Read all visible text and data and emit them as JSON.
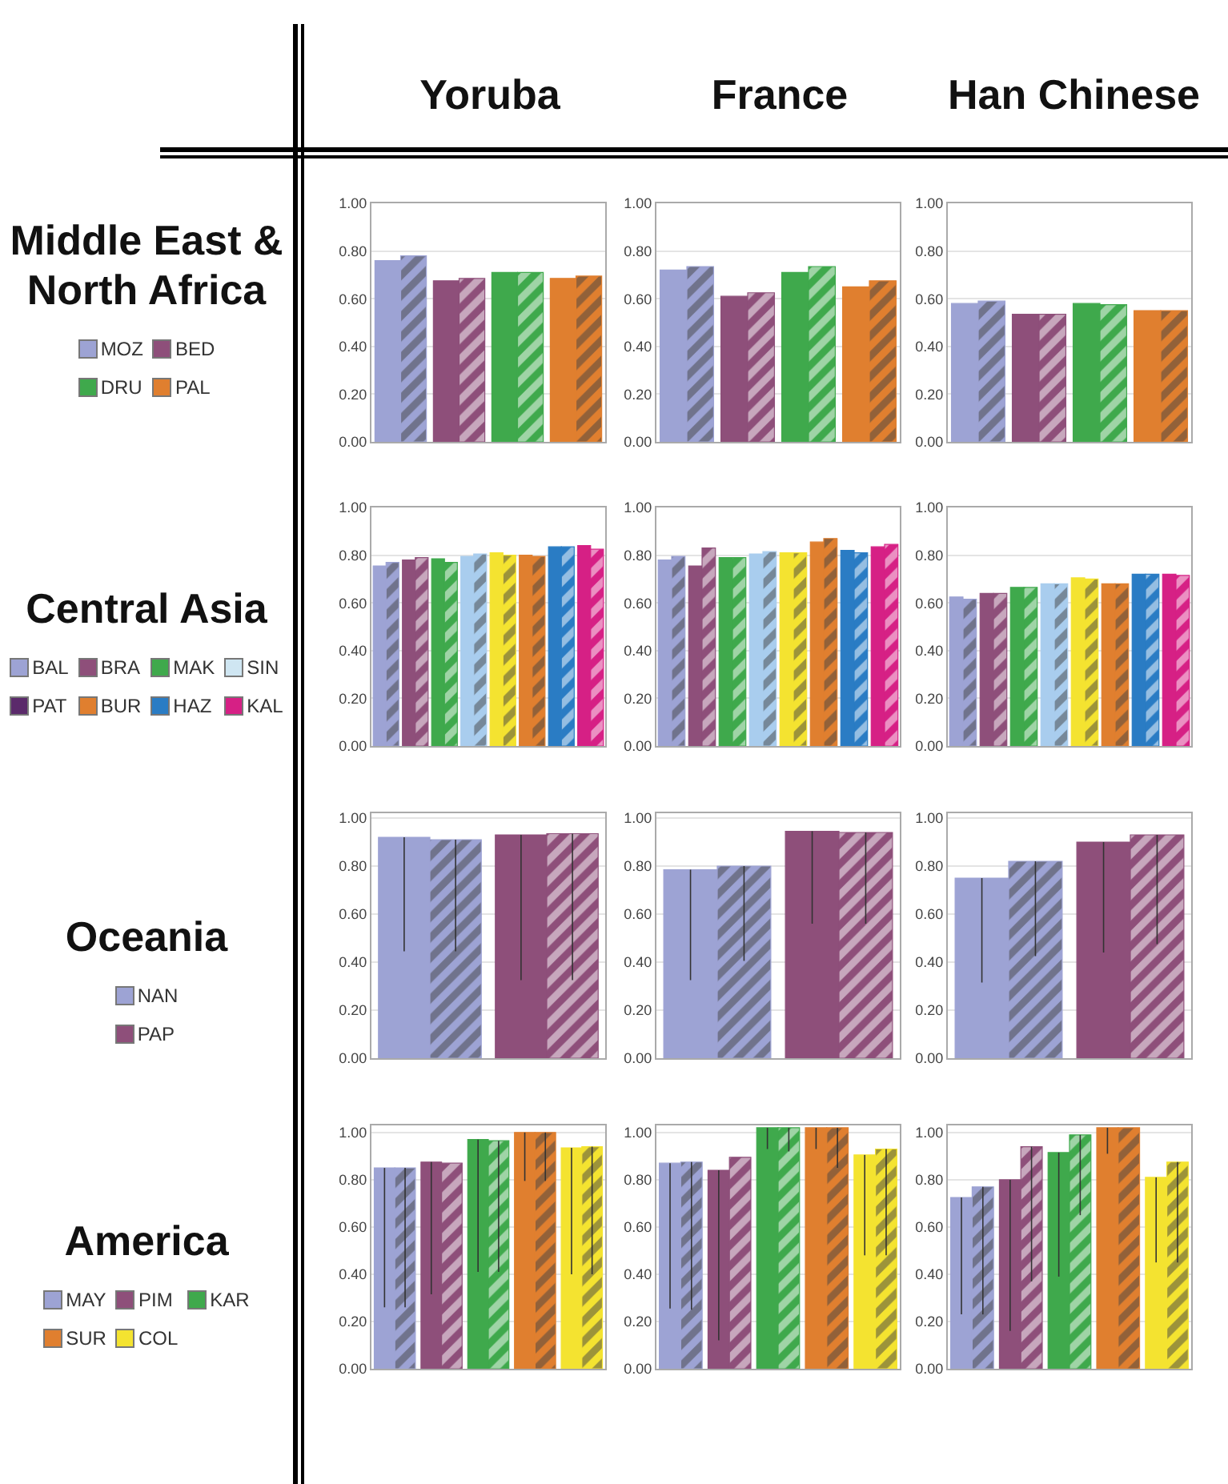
{
  "chart_data": [
    {
      "type": "other",
      "title": "Middle East & North Africa",
      "categories": [
        "MOZ",
        "BED",
        "DRU",
        "PAL"
      ],
      "colors": [
        "#9da3d4",
        "#8e4f7a",
        "#3fa94c",
        "#e07f2f"
      ]
    },
    {
      "type": "bar",
      "title": "Yoruba",
      "categories": [
        null,
        null,
        null,
        null
      ],
      "ylim": [
        0,
        1
      ],
      "yticks": [
        {
          "value": 0,
          "label": "0.00"
        },
        {
          "value": 0.2,
          "label": "0.20"
        },
        {
          "value": 0.4,
          "label": "0.40"
        },
        {
          "value": 0.6,
          "label": "0.60"
        },
        {
          "value": 0.8,
          "label": "0.80"
        },
        {
          "value": 1,
          "label": "1.00"
        }
      ],
      "grid": "y",
      "tick_labels": "y",
      "series": [
        {
          "colors": [
            "#9da3d4",
            "#8e4f7a",
            "#3fa94c",
            "#e07f2f"
          ],
          "values": [
            0.76,
            0.675,
            0.71,
            0.685
          ]
        },
        {
          "colors": [
            "#9da3d4",
            "#8e4f7a",
            "#3fa94c",
            "#e07f2f"
          ],
          "values": [
            0.78,
            0.685,
            0.71,
            0.695
          ]
        }
      ]
    },
    {
      "type": "bar",
      "title": "France",
      "categories": [
        null,
        null,
        null,
        null
      ],
      "ylim": [
        0,
        1
      ],
      "yticks": [
        {
          "value": 0,
          "label": "0.00"
        },
        {
          "value": 0.2,
          "label": "0.20"
        },
        {
          "value": 0.4,
          "label": "0.40"
        },
        {
          "value": 0.6,
          "label": "0.60"
        },
        {
          "value": 0.8,
          "label": "0.80"
        },
        {
          "value": 1,
          "label": "1.00"
        }
      ],
      "grid": "y",
      "tick_labels": "y",
      "series": [
        {
          "colors": [
            "#9da3d4",
            "#8e4f7a",
            "#3fa94c",
            "#e07f2f"
          ],
          "values": [
            0.72,
            0.61,
            0.71,
            0.65
          ]
        },
        {
          "colors": [
            "#9da3d4",
            "#8e4f7a",
            "#3fa94c",
            "#e07f2f"
          ],
          "values": [
            0.735,
            0.625,
            0.735,
            0.675
          ]
        }
      ]
    },
    {
      "type": "bar",
      "title": "Han Chinese",
      "categories": [
        null,
        null,
        null,
        null
      ],
      "ylim": [
        0,
        1
      ],
      "yticks": [
        {
          "value": 0,
          "label": "0.00"
        },
        {
          "value": 0.2,
          "label": "0.20"
        },
        {
          "value": 0.4,
          "label": "0.40"
        },
        {
          "value": 0.6,
          "label": "0.60"
        },
        {
          "value": 0.8,
          "label": "0.80"
        },
        {
          "value": 1,
          "label": "1.00"
        }
      ],
      "grid": "y",
      "tick_labels": "y",
      "series": [
        {
          "colors": [
            "#9da3d4",
            "#8e4f7a",
            "#3fa94c",
            "#e07f2f"
          ],
          "values": [
            0.58,
            0.535,
            0.58,
            0.55
          ]
        },
        {
          "colors": [
            "#9da3d4",
            "#8e4f7a",
            "#3fa94c",
            "#e07f2f"
          ],
          "values": [
            0.59,
            0.535,
            0.575,
            0.55
          ]
        }
      ]
    },
    {
      "type": "other",
      "title": "Central Asia",
      "categories": [
        "BAL",
        "BRA",
        "MAK",
        "SIN",
        "PAT",
        "BUR",
        "HAZ",
        "KAL"
      ],
      "colors": [
        "#9da3d4",
        "#8e4f7a",
        "#3fa94c",
        "#cfe6f2",
        "#5b2a6b",
        "#e07f2f",
        "#2a7cc4",
        "#d62085"
      ]
    },
    {
      "type": "bar",
      "categories": [
        null,
        null,
        null,
        null,
        null,
        null,
        null,
        null
      ],
      "ylim": [
        0,
        1
      ],
      "yticks": [
        {
          "value": 0,
          "label": "0.00"
        },
        {
          "value": 0.2,
          "label": "0.20"
        },
        {
          "value": 0.4,
          "label": "0.40"
        },
        {
          "value": 0.6,
          "label": "0.60"
        },
        {
          "value": 0.8,
          "label": "0.80"
        },
        {
          "value": 1,
          "label": "1.00"
        }
      ],
      "grid": "y",
      "tick_labels": "y",
      "series": [
        {
          "colors": [
            "#9da3d4",
            "#8e4f7a",
            "#3fa94c",
            "#a9cdee",
            "#f4e330",
            "#e07f2f",
            "#2a7cc4",
            "#d62085"
          ],
          "values": [
            0.755,
            0.78,
            0.785,
            0.795,
            0.81,
            0.8,
            0.835,
            0.84
          ]
        },
        {
          "colors": [
            "#9da3d4",
            "#8e4f7a",
            "#3fa94c",
            "#a9cdee",
            "#f4e330",
            "#e07f2f",
            "#2a7cc4",
            "#d62085"
          ],
          "values": [
            0.77,
            0.79,
            0.77,
            0.805,
            0.8,
            0.795,
            0.835,
            0.825
          ]
        }
      ]
    },
    {
      "type": "bar",
      "categories": [
        null,
        null,
        null,
        null,
        null,
        null,
        null,
        null
      ],
      "ylim": [
        0,
        1
      ],
      "yticks": [
        {
          "value": 0,
          "label": "0.00"
        },
        {
          "value": 0.2,
          "label": "0.20"
        },
        {
          "value": 0.4,
          "label": "0.40"
        },
        {
          "value": 0.6,
          "label": "0.60"
        },
        {
          "value": 0.8,
          "label": "0.80"
        },
        {
          "value": 1,
          "label": "1.00"
        }
      ],
      "grid": "y",
      "tick_labels": "y",
      "series": [
        {
          "colors": [
            "#9da3d4",
            "#8e4f7a",
            "#3fa94c",
            "#a9cdee",
            "#f4e330",
            "#e07f2f",
            "#2a7cc4",
            "#d62085"
          ],
          "values": [
            0.78,
            0.755,
            0.79,
            0.805,
            0.81,
            0.855,
            0.82,
            0.835
          ]
        },
        {
          "colors": [
            "#9da3d4",
            "#8e4f7a",
            "#3fa94c",
            "#a9cdee",
            "#f4e330",
            "#e07f2f",
            "#2a7cc4",
            "#d62085"
          ],
          "values": [
            0.795,
            0.83,
            0.79,
            0.815,
            0.81,
            0.87,
            0.81,
            0.845
          ]
        }
      ]
    },
    {
      "type": "bar",
      "categories": [
        null,
        null,
        null,
        null,
        null,
        null,
        null,
        null
      ],
      "ylim": [
        0,
        1
      ],
      "yticks": [
        {
          "value": 0,
          "label": "0.00"
        },
        {
          "value": 0.2,
          "label": "0.20"
        },
        {
          "value": 0.4,
          "label": "0.40"
        },
        {
          "value": 0.6,
          "label": "0.60"
        },
        {
          "value": 0.8,
          "label": "0.80"
        },
        {
          "value": 1,
          "label": "1.00"
        }
      ],
      "grid": "y",
      "tick_labels": "y",
      "series": [
        {
          "colors": [
            "#9da3d4",
            "#8e4f7a",
            "#3fa94c",
            "#a9cdee",
            "#f4e330",
            "#e07f2f",
            "#2a7cc4",
            "#d62085"
          ],
          "values": [
            0.625,
            0.64,
            0.665,
            0.68,
            0.705,
            0.68,
            0.72,
            0.72
          ]
        },
        {
          "colors": [
            "#9da3d4",
            "#8e4f7a",
            "#3fa94c",
            "#a9cdee",
            "#f4e330",
            "#e07f2f",
            "#2a7cc4",
            "#d62085"
          ],
          "values": [
            0.615,
            0.64,
            0.665,
            0.68,
            0.7,
            0.68,
            0.72,
            0.715
          ]
        }
      ]
    },
    {
      "type": "other",
      "title": "Oceania",
      "categories": [
        "NAN",
        "PAP"
      ],
      "colors": [
        "#9da3d4",
        "#8e4f7a"
      ]
    },
    {
      "type": "bar",
      "categories": [
        null,
        null
      ],
      "ylim": [
        0,
        1.02
      ],
      "yticks": [
        {
          "value": 0,
          "label": "0.00"
        },
        {
          "value": 0.2,
          "label": "0.20"
        },
        {
          "value": 0.4,
          "label": "0.40"
        },
        {
          "value": 0.6,
          "label": "0.60"
        },
        {
          "value": 0.8,
          "label": "0.80"
        },
        {
          "value": 1,
          "label": "1.00"
        }
      ],
      "grid": "y",
      "tick_labels": "y",
      "series": [
        {
          "colors": [
            "#9da3d4",
            "#8e4f7a"
          ],
          "values": [
            0.92,
            0.93
          ],
          "errors": [
            [
              0.445,
              0.92
            ],
            [
              0.325,
              0.93
            ]
          ]
        },
        {
          "colors": [
            "#9da3d4",
            "#8e4f7a"
          ],
          "values": [
            0.91,
            0.935
          ],
          "errors": [
            [
              0.445,
              0.91
            ],
            [
              0.325,
              0.935
            ]
          ]
        }
      ]
    },
    {
      "type": "bar",
      "categories": [
        null,
        null
      ],
      "ylim": [
        0,
        1.02
      ],
      "yticks": [
        {
          "value": 0,
          "label": "0.00"
        },
        {
          "value": 0.2,
          "label": "0.20"
        },
        {
          "value": 0.4,
          "label": "0.40"
        },
        {
          "value": 0.6,
          "label": "0.60"
        },
        {
          "value": 0.8,
          "label": "0.80"
        },
        {
          "value": 1,
          "label": "1.00"
        }
      ],
      "grid": "y",
      "tick_labels": "y",
      "series": [
        {
          "colors": [
            "#9da3d4",
            "#8e4f7a"
          ],
          "values": [
            0.785,
            0.945
          ],
          "errors": [
            [
              0.325,
              0.785
            ],
            [
              0.56,
              0.945
            ]
          ]
        },
        {
          "colors": [
            "#9da3d4",
            "#8e4f7a"
          ],
          "values": [
            0.8,
            0.94
          ],
          "errors": [
            [
              0.405,
              0.8
            ],
            [
              0.56,
              0.94
            ]
          ]
        }
      ]
    },
    {
      "type": "bar",
      "categories": [
        null,
        null
      ],
      "ylim": [
        0,
        1.02
      ],
      "yticks": [
        {
          "value": 0,
          "label": "0.00"
        },
        {
          "value": 0.2,
          "label": "0.20"
        },
        {
          "value": 0.4,
          "label": "0.40"
        },
        {
          "value": 0.6,
          "label": "0.60"
        },
        {
          "value": 0.8,
          "label": "0.80"
        },
        {
          "value": 1,
          "label": "1.00"
        }
      ],
      "grid": "y",
      "tick_labels": "y",
      "series": [
        {
          "colors": [
            "#9da3d4",
            "#8e4f7a"
          ],
          "values": [
            0.75,
            0.9
          ],
          "errors": [
            [
              0.315,
              0.75
            ],
            [
              0.44,
              0.9
            ]
          ]
        },
        {
          "colors": [
            "#9da3d4",
            "#8e4f7a"
          ],
          "values": [
            0.82,
            0.93
          ],
          "errors": [
            [
              0.425,
              0.82
            ],
            [
              0.475,
              0.93
            ]
          ]
        }
      ]
    },
    {
      "type": "other",
      "title": "America",
      "categories": [
        "MAY",
        "PIM",
        "KAR",
        "SUR",
        "COL"
      ],
      "colors": [
        "#9da3d4",
        "#8e4f7a",
        "#3fa94c",
        "#e07f2f",
        "#f4e330"
      ]
    },
    {
      "type": "bar",
      "categories": [
        null,
        null,
        null,
        null,
        null
      ],
      "ylim": [
        0,
        1.03
      ],
      "yticks": [
        {
          "value": 0,
          "label": "0.00"
        },
        {
          "value": 0.2,
          "label": "0.20"
        },
        {
          "value": 0.4,
          "label": "0.40"
        },
        {
          "value": 0.6,
          "label": "0.60"
        },
        {
          "value": 0.8,
          "label": "0.80"
        },
        {
          "value": 1,
          "label": "1.00"
        }
      ],
      "grid": "y",
      "tick_labels": "y",
      "series": [
        {
          "colors": [
            "#9da3d4",
            "#8e4f7a",
            "#3fa94c",
            "#e07f2f",
            "#f4e330"
          ],
          "values": [
            0.85,
            0.875,
            0.97,
            1.0,
            0.935
          ],
          "errors": [
            [
              0.26,
              0.85
            ],
            [
              0.315,
              0.875
            ],
            [
              0.41,
              0.97
            ],
            [
              0.795,
              1.0
            ],
            [
              0.4,
              0.935
            ]
          ]
        },
        {
          "colors": [
            "#9da3d4",
            "#8e4f7a",
            "#3fa94c",
            "#e07f2f",
            "#f4e330"
          ],
          "values": [
            0.85,
            0.87,
            0.965,
            1.0,
            0.94
          ],
          "errors": [
            [
              0.26,
              0.85
            ],
            null,
            [
              0.41,
              0.965
            ],
            [
              0.795,
              1.0
            ],
            [
              0.4,
              0.94
            ]
          ]
        }
      ]
    },
    {
      "type": "bar",
      "categories": [
        null,
        null,
        null,
        null,
        null
      ],
      "ylim": [
        0,
        1.03
      ],
      "yticks": [
        {
          "value": 0,
          "label": "0.00"
        },
        {
          "value": 0.2,
          "label": "0.20"
        },
        {
          "value": 0.4,
          "label": "0.40"
        },
        {
          "value": 0.6,
          "label": "0.60"
        },
        {
          "value": 0.8,
          "label": "0.80"
        },
        {
          "value": 1,
          "label": "1.00"
        }
      ],
      "grid": "y",
      "tick_labels": "y",
      "series": [
        {
          "colors": [
            "#9da3d4",
            "#8e4f7a",
            "#3fa94c",
            "#e07f2f",
            "#f4e330"
          ],
          "values": [
            0.87,
            0.84,
            1.02,
            1.02,
            0.905
          ],
          "errors": [
            [
              0.255,
              0.87
            ],
            [
              0.12,
              0.84
            ],
            [
              0.93,
              1.02
            ],
            [
              0.93,
              1.02
            ],
            [
              0.48,
              0.905
            ]
          ]
        },
        {
          "colors": [
            "#9da3d4",
            "#8e4f7a",
            "#3fa94c",
            "#e07f2f",
            "#f4e330"
          ],
          "values": [
            0.875,
            0.895,
            1.02,
            1.02,
            0.93
          ],
          "errors": [
            [
              0.25,
              0.875
            ],
            null,
            [
              0.92,
              1.02
            ],
            [
              0.85,
              1.02
            ],
            [
              0.48,
              0.93
            ]
          ]
        }
      ]
    },
    {
      "type": "bar",
      "categories": [
        null,
        null,
        null,
        null,
        null
      ],
      "ylim": [
        0,
        1.03
      ],
      "yticks": [
        {
          "value": 0,
          "label": "0.00"
        },
        {
          "value": 0.2,
          "label": "0.20"
        },
        {
          "value": 0.4,
          "label": "0.40"
        },
        {
          "value": 0.6,
          "label": "0.60"
        },
        {
          "value": 0.8,
          "label": "0.80"
        },
        {
          "value": 1,
          "label": "1.00"
        }
      ],
      "grid": "y",
      "tick_labels": "y",
      "series": [
        {
          "colors": [
            "#9da3d4",
            "#8e4f7a",
            "#3fa94c",
            "#e07f2f",
            "#f4e330"
          ],
          "values": [
            0.725,
            0.8,
            0.915,
            1.02,
            0.81
          ],
          "errors": [
            [
              0.23,
              0.725
            ],
            [
              0.16,
              0.8
            ],
            [
              0.39,
              0.915
            ],
            [
              0.91,
              1.02
            ],
            [
              0.45,
              0.81
            ]
          ]
        },
        {
          "colors": [
            "#9da3d4",
            "#8e4f7a",
            "#3fa94c",
            "#e07f2f",
            "#f4e330"
          ],
          "values": [
            0.77,
            0.94,
            0.99,
            1.02,
            0.875
          ],
          "errors": [
            [
              0.23,
              0.77
            ],
            [
              0.37,
              0.94
            ],
            [
              0.65,
              0.99
            ],
            null,
            [
              0.45,
              0.875
            ]
          ]
        }
      ]
    }
  ]
}
